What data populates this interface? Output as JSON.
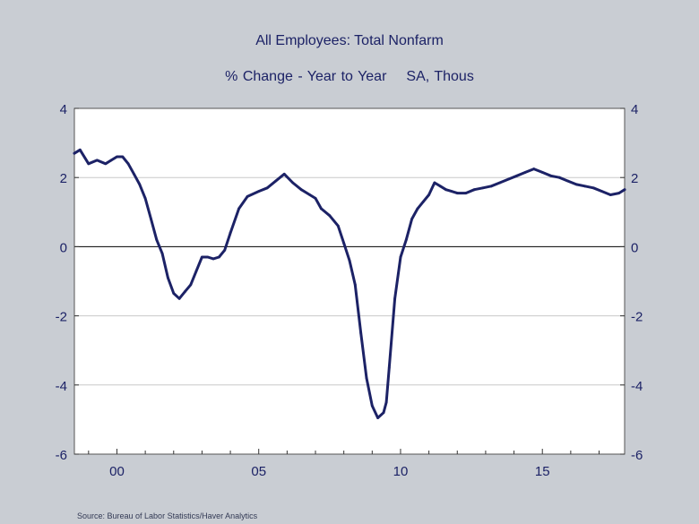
{
  "header": {
    "title": "All Employees: Total Nonfarm",
    "subtitle": "% Change - Year to Year",
    "units": "SA, Thous"
  },
  "source": "Source:  Bureau of Labor Statistics/Haver Analytics",
  "colors": {
    "background": "#c9cdd3",
    "plot_background": "#ffffff",
    "line": "#1c2266",
    "text": "#1c2266",
    "grid": "#c8c8c8"
  },
  "chart_data": {
    "type": "line",
    "title": "All Employees: Total Nonfarm",
    "subtitle": "% Change - Year to Year    SA, Thous",
    "xlabel": "",
    "ylabel": "",
    "xlim": [
      1998.5,
      2017.9
    ],
    "ylim": [
      -6,
      4
    ],
    "y_ticks": [
      -6,
      -4,
      -2,
      0,
      2,
      4
    ],
    "y_tick_labels": [
      "-6",
      "-4",
      "-2",
      "0",
      "2",
      "4"
    ],
    "x_ticks": [
      2000,
      2005,
      2010,
      2015
    ],
    "x_tick_labels": [
      "00",
      "05",
      "10",
      "15"
    ],
    "grid": true,
    "dual_y_axis": true,
    "series": [
      {
        "x": [
          1998.5,
          1998.7,
          1999.0,
          1999.3,
          1999.6,
          1999.8,
          2000.0,
          2000.2,
          2000.4,
          2000.6,
          2000.8,
          2001.0,
          2001.2,
          2001.4,
          2001.6,
          2001.8,
          2002.0,
          2002.2,
          2002.4,
          2002.6,
          2002.8,
          2003.0,
          2003.2,
          2003.4,
          2003.6,
          2003.8,
          2004.0,
          2004.3,
          2004.6,
          2005.0,
          2005.3,
          2005.6,
          2005.9,
          2006.2,
          2006.5,
          2006.8,
          2007.0,
          2007.2,
          2007.5,
          2007.8,
          2008.0,
          2008.2,
          2008.4,
          2008.6,
          2008.8,
          2009.0,
          2009.2,
          2009.4,
          2009.5,
          2009.6,
          2009.8,
          2010.0,
          2010.2,
          2010.4,
          2010.6,
          2010.8,
          2011.0,
          2011.2,
          2011.4,
          2011.6,
          2011.8,
          2012.0,
          2012.3,
          2012.6,
          2012.9,
          2013.2,
          2013.5,
          2013.8,
          2014.1,
          2014.4,
          2014.7,
          2015.0,
          2015.3,
          2015.6,
          2015.9,
          2016.2,
          2016.5,
          2016.8,
          2017.1,
          2017.4,
          2017.7,
          2017.9
        ],
        "values": [
          2.7,
          2.8,
          2.4,
          2.5,
          2.4,
          2.5,
          2.6,
          2.6,
          2.4,
          2.1,
          1.8,
          1.4,
          0.8,
          0.2,
          -0.2,
          -0.9,
          -1.35,
          -1.5,
          -1.3,
          -1.1,
          -0.7,
          -0.3,
          -0.3,
          -0.35,
          -0.3,
          -0.1,
          0.4,
          1.1,
          1.45,
          1.6,
          1.7,
          1.9,
          2.1,
          1.85,
          1.65,
          1.5,
          1.4,
          1.1,
          0.9,
          0.6,
          0.1,
          -0.4,
          -1.1,
          -2.5,
          -3.8,
          -4.6,
          -4.95,
          -4.8,
          -4.5,
          -3.5,
          -1.5,
          -0.3,
          0.2,
          0.8,
          1.1,
          1.3,
          1.5,
          1.85,
          1.75,
          1.65,
          1.6,
          1.55,
          1.55,
          1.65,
          1.7,
          1.75,
          1.85,
          1.95,
          2.05,
          2.15,
          2.25,
          2.15,
          2.05,
          2.0,
          1.9,
          1.8,
          1.75,
          1.7,
          1.6,
          1.5,
          1.55,
          1.65
        ]
      }
    ]
  }
}
